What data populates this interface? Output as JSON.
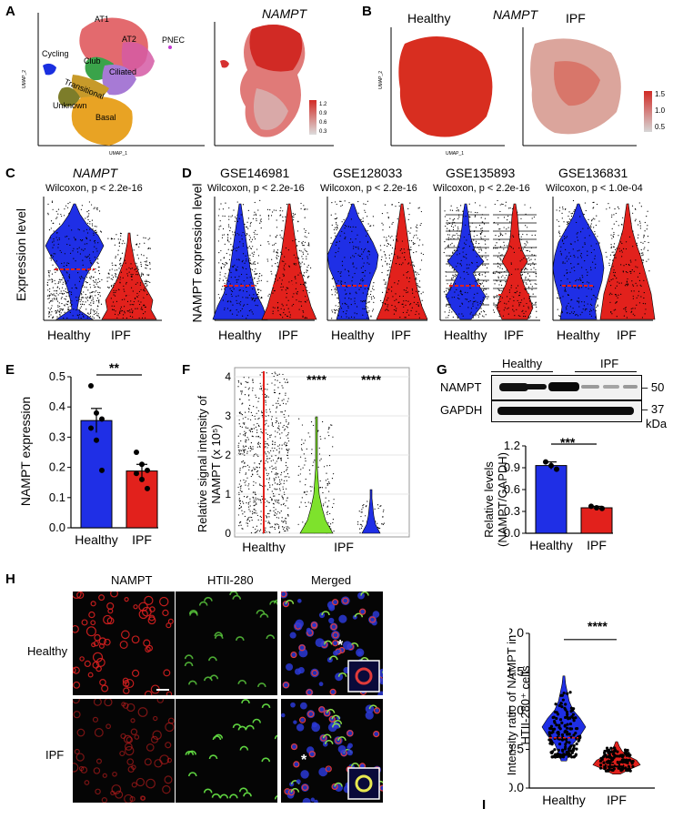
{
  "panels": [
    "A",
    "B",
    "C",
    "D",
    "E",
    "F",
    "G",
    "H",
    "I"
  ],
  "panelA": {
    "umap_title": "NAMPT",
    "x_axis": "UMAP_1",
    "y_axis": "UMAP_2",
    "clusters": [
      "AT1",
      "AT2",
      "PNEC",
      "Cycling",
      "Club",
      "Transitional",
      "Ciliated",
      "Unknown",
      "Basal"
    ],
    "color_scale": [
      "1.2",
      "0.9",
      "0.6",
      "0.3"
    ],
    "x_ticks": [
      "-5",
      "0",
      "5"
    ],
    "y_ticks": [
      "5",
      "0",
      "-5",
      "-10"
    ]
  },
  "panelB": {
    "title": "NAMPT",
    "groups": [
      "Healthy",
      "IPF"
    ],
    "x_axis": "UMAP_1",
    "y_axis": "UMAP_2",
    "color_scale": [
      "1.5",
      "1.0",
      "0.5"
    ],
    "x_ticks": [
      "-10",
      "-5",
      "0",
      "5",
      "10"
    ],
    "y_ticks": [
      "10",
      "5",
      "0",
      "-5",
      "-10"
    ]
  },
  "panelC": {
    "title": "NAMPT",
    "stat": "Wilcoxon, p < 2.2e-16",
    "ylabel": "Expression level",
    "groups": [
      "Healthy",
      "IPF"
    ]
  },
  "panelD": {
    "ylabel": "NAMPT expression level",
    "datasets": [
      {
        "name": "GSE146981",
        "stat": "Wilcoxon, p < 2.2e-16"
      },
      {
        "name": "GSE128033",
        "stat": "Wilcoxon, p < 2.2e-16"
      },
      {
        "name": "GSE135893",
        "stat": "Wilcoxon, p < 2.2e-16"
      },
      {
        "name": "GSE136831",
        "stat": "Wilcoxon, p < 1.0e-04"
      }
    ],
    "groups": [
      "Healthy",
      "IPF"
    ]
  },
  "panelE": {
    "ylabel": "NAMPT expression",
    "sig": "**",
    "chart_data": {
      "type": "bar",
      "categories": [
        "Healthy",
        "IPF"
      ],
      "values": [
        0.355,
        0.188
      ],
      "errors": [
        0.04,
        0.022
      ],
      "points": [
        [
          0.47,
          0.38,
          0.36,
          0.33,
          0.29,
          0.19
        ],
        [
          0.25,
          0.21,
          0.19,
          0.18,
          0.16,
          0.13
        ]
      ],
      "colors": [
        "#1f2fe6",
        "#e2211c"
      ],
      "ylim": [
        0,
        0.5
      ],
      "yticks": [
        "0.0",
        "0.1",
        "0.2",
        "0.3",
        "0.4",
        "0.5"
      ]
    }
  },
  "panelF": {
    "ylabel": "Relative signal intensity of NAMPT (x 10⁵)",
    "sig": [
      "****",
      "****"
    ],
    "xlabels": [
      "Healthy",
      "IPF"
    ],
    "yticks": [
      "0",
      "1",
      "2",
      "3",
      "4"
    ]
  },
  "panelG": {
    "groups": [
      "Healthy",
      "IPF"
    ],
    "blot_rows": [
      "NAMPT",
      "GAPDH"
    ],
    "mw": [
      "50",
      "37"
    ],
    "mw_unit": "kDa",
    "ylabel": "Relative levels (NAMPT/GAPDH)",
    "sig": "***",
    "chart_data": {
      "type": "bar",
      "categories": [
        "Healthy",
        "IPF"
      ],
      "values": [
        0.93,
        0.35
      ],
      "errors": [
        0.05,
        0.02
      ],
      "points": [
        [
          0.98,
          0.93,
          0.88
        ],
        [
          0.37,
          0.35,
          0.34
        ]
      ],
      "colors": [
        "#1f2fe6",
        "#e2211c"
      ],
      "ylim": [
        0,
        1.2
      ],
      "yticks": [
        "0.0",
        "0.3",
        "0.6",
        "0.9",
        "1.2"
      ]
    }
  },
  "panelH": {
    "columns": [
      "NAMPT",
      "HTII-280",
      "Merged"
    ],
    "rows": [
      "Healthy",
      "IPF"
    ]
  },
  "panelI": {
    "ylabel": "Intensity ratio of NAMPT in HTII-280⁺ cells",
    "sig": "****",
    "groups": [
      "Healthy",
      "IPF"
    ],
    "yticks": [
      "0.0",
      "0.5",
      "1.0",
      "1.5",
      "2.0"
    ],
    "ylim": [
      0,
      2.0
    ]
  }
}
